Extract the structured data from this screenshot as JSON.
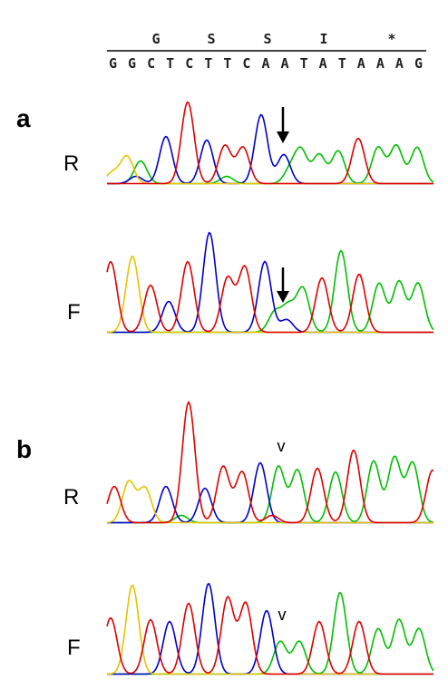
{
  "header": {
    "amino_acids": [
      "G",
      "S",
      "S",
      "I",
      "*"
    ],
    "nucleotides": "GGCTCTTCAATATAAAG"
  },
  "panels": [
    {
      "label": "a",
      "traces": [
        {
          "label": "R"
        },
        {
          "label": "F"
        }
      ]
    },
    {
      "label": "b",
      "traces": [
        {
          "label": "R",
          "marker": "v"
        },
        {
          "label": "F",
          "marker": "v"
        }
      ]
    }
  ]
}
